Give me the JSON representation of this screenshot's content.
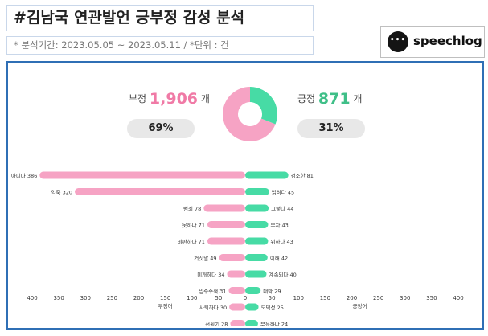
{
  "header": {
    "title": "#김남국 연관발언 긍부정 감성 분석",
    "subtitle": "* 분석기간: 2023.05.05 ~ 2023.05.11 / *단위 : 건"
  },
  "logo": {
    "icon": "speech-bubble-icon",
    "dots": "•••",
    "text": "speechlog"
  },
  "summary": {
    "negative": {
      "label": "부정",
      "count": "1,906",
      "unit": "개",
      "percent": "69%",
      "color": "#f07aa6"
    },
    "positive": {
      "label": "긍정",
      "count": "871",
      "unit": "개",
      "percent": "31%",
      "color": "#3fbf88"
    }
  },
  "donut": {
    "negative_fraction": 0.69,
    "positive_fraction": 0.31,
    "negative_color": "#f6a3c4",
    "positive_color": "#47dba5"
  },
  "chart_data": {
    "type": "bar",
    "orientation": "horizontal-diverging",
    "series": [
      {
        "name": "부정어",
        "color": "#f6a3c4",
        "categories": [
          "아니다",
          "억죽",
          "범죄",
          "못하다",
          "비판하다",
          "거짓말",
          "미개하다",
          "밉수수색",
          "사퇴하다",
          "전횡기"
        ],
        "values": [
          386,
          320,
          78,
          71,
          71,
          49,
          34,
          31,
          30,
          28
        ]
      },
      {
        "name": "긍정어",
        "color": "#47dba5",
        "categories": [
          "검소한",
          "밝히다",
          "그렇다",
          "부자",
          "위하다",
          "이해",
          "계속되다",
          "대박",
          "도덕성",
          "부유하다"
        ],
        "values": [
          81,
          45,
          44,
          43,
          43,
          42,
          40,
          29,
          25,
          24
        ]
      }
    ],
    "x_ticks_left": [
      "400",
      "350",
      "300",
      "250",
      "200",
      "150",
      "100",
      "50",
      "0"
    ],
    "x_ticks_right": [
      "50",
      "100",
      "150",
      "200",
      "250",
      "300",
      "350",
      "400"
    ],
    "xlabel_left": "부정어",
    "xlabel_right": "긍정어",
    "xlim": [
      0,
      400
    ]
  }
}
